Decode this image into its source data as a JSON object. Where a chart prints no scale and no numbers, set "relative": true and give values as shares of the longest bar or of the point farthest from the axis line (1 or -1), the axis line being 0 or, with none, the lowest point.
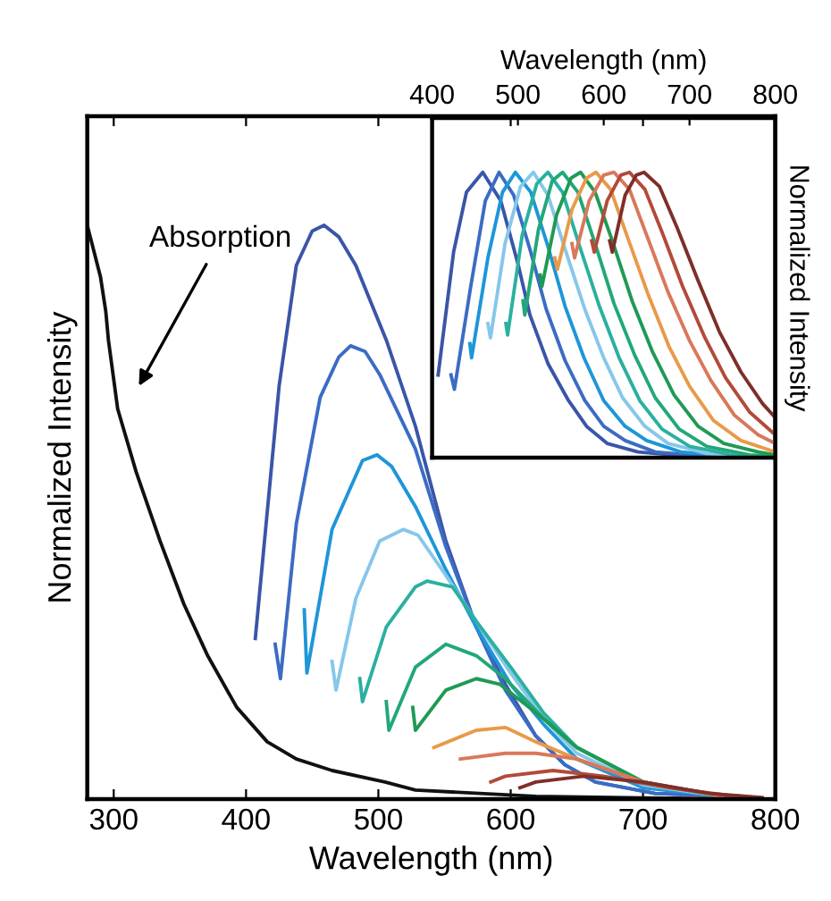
{
  "chart_data": [
    {
      "type": "line",
      "relative": true,
      "xlabel": "Wavelength (nm)",
      "ylabel": "Normalized Intensity",
      "xlim": [
        280,
        800
      ],
      "xticks": [
        300,
        400,
        500,
        600,
        700,
        800
      ],
      "marker": "none",
      "line_style": "solid",
      "annotations": [
        "Absorption"
      ],
      "series": [
        {
          "color": "#111111",
          "x": [
            280,
            290,
            294,
            296,
            303,
            317,
            335,
            353,
            371,
            393,
            416,
            438,
            465,
            505,
            528,
            619,
            700,
            800
          ],
          "values": [
            1.0,
            0.91,
            0.85,
            0.8,
            0.68,
            0.57,
            0.45,
            0.34,
            0.25,
            0.16,
            0.1,
            0.07,
            0.05,
            0.03,
            0.016,
            0.005,
            0.002,
            0.0
          ]
        },
        {
          "color": "#3a55a8",
          "x": [
            407,
            425,
            438,
            450,
            459,
            470,
            483,
            506,
            528,
            551,
            574,
            596,
            619,
            641,
            664,
            709,
            775
          ],
          "values": [
            0.28,
            0.72,
            0.93,
            0.99,
            1.0,
            0.98,
            0.93,
            0.8,
            0.65,
            0.45,
            0.3,
            0.2,
            0.11,
            0.06,
            0.03,
            0.01,
            0.005
          ]
        },
        {
          "color": "#3b6cc4",
          "x": [
            422,
            426,
            438,
            456,
            470,
            479,
            490,
            501,
            528,
            551,
            574,
            596,
            619,
            641,
            664,
            709,
            775
          ],
          "values": [
            0.27,
            0.21,
            0.48,
            0.7,
            0.77,
            0.79,
            0.78,
            0.74,
            0.61,
            0.44,
            0.3,
            0.19,
            0.11,
            0.06,
            0.03,
            0.01,
            0.005
          ]
        },
        {
          "color": "#1e96d8",
          "x": [
            444,
            446,
            465,
            488,
            499,
            510,
            528,
            551,
            574,
            600,
            625,
            650,
            700,
            760
          ],
          "values": [
            0.33,
            0.22,
            0.47,
            0.59,
            0.6,
            0.58,
            0.51,
            0.4,
            0.3,
            0.2,
            0.13,
            0.07,
            0.02,
            0.005
          ]
        },
        {
          "color": "#86c7ea",
          "x": [
            465,
            468,
            483,
            501,
            519,
            530,
            551,
            574,
            600,
            625,
            650,
            700,
            760
          ],
          "values": [
            0.24,
            0.19,
            0.35,
            0.45,
            0.47,
            0.46,
            0.39,
            0.31,
            0.22,
            0.14,
            0.08,
            0.025,
            0.005
          ]
        },
        {
          "color": "#2ab0a0",
          "x": [
            486,
            488,
            506,
            528,
            537,
            556,
            574,
            600,
            625,
            650,
            700,
            760
          ],
          "values": [
            0.21,
            0.17,
            0.3,
            0.37,
            0.38,
            0.37,
            0.31,
            0.23,
            0.15,
            0.09,
            0.03,
            0.005
          ]
        },
        {
          "color": "#22a878",
          "x": [
            506,
            508,
            528,
            551,
            574,
            596,
            625,
            650,
            700,
            760
          ],
          "values": [
            0.17,
            0.12,
            0.23,
            0.27,
            0.25,
            0.21,
            0.14,
            0.09,
            0.03,
            0.005
          ]
        },
        {
          "color": "#1f9a55",
          "x": [
            526,
            528,
            551,
            574,
            592,
            625,
            650,
            700,
            760
          ],
          "values": [
            0.16,
            0.12,
            0.19,
            0.21,
            0.2,
            0.14,
            0.09,
            0.03,
            0.005
          ]
        },
        {
          "color": "#e89a4a",
          "x": [
            542,
            574,
            596,
            619,
            650,
            700,
            760
          ],
          "values": [
            0.09,
            0.12,
            0.125,
            0.1,
            0.07,
            0.03,
            0.005
          ]
        },
        {
          "color": "#d9785a",
          "x": [
            562,
            596,
            619,
            650,
            700,
            760
          ],
          "values": [
            0.07,
            0.08,
            0.08,
            0.07,
            0.03,
            0.005
          ]
        },
        {
          "color": "#b34a3a",
          "x": [
            585,
            596,
            632,
            670,
            720,
            770
          ],
          "values": [
            0.03,
            0.04,
            0.05,
            0.04,
            0.02,
            0.005
          ]
        },
        {
          "color": "#7e2f2a",
          "x": [
            607,
            619,
            655,
            700,
            750,
            790
          ],
          "values": [
            0.02,
            0.03,
            0.04,
            0.03,
            0.01,
            0.003
          ]
        }
      ]
    },
    {
      "type": "line",
      "relative": true,
      "xlabel": "Wavelength (nm)",
      "ylabel": "Normalized Intensity",
      "xlim": [
        400,
        800
      ],
      "xticks": [
        400,
        500,
        600,
        700,
        800
      ],
      "marker": "none",
      "line_style": "solid",
      "series": [
        {
          "color": "#3a55a8",
          "x": [
            407,
            425,
            440,
            459,
            480,
            500,
            514,
            535,
            559,
            580,
            604,
            640,
            700,
            800
          ],
          "values": [
            0.29,
            0.72,
            0.93,
            1.0,
            0.9,
            0.68,
            0.5,
            0.33,
            0.2,
            0.11,
            0.05,
            0.02,
            0.005,
            0.0
          ]
        },
        {
          "color": "#3b6cc4",
          "x": [
            422,
            426,
            445,
            462,
            478,
            495,
            515,
            533,
            555,
            578,
            600,
            625,
            660,
            720,
            800
          ],
          "values": [
            0.29,
            0.24,
            0.6,
            0.9,
            1.0,
            0.92,
            0.72,
            0.52,
            0.34,
            0.2,
            0.11,
            0.06,
            0.02,
            0.005,
            0.0
          ]
        },
        {
          "color": "#1e96d8",
          "x": [
            444,
            446,
            465,
            482,
            497,
            515,
            535,
            555,
            577,
            600,
            625,
            650,
            690,
            750,
            800
          ],
          "values": [
            0.4,
            0.35,
            0.7,
            0.93,
            1.0,
            0.93,
            0.74,
            0.53,
            0.35,
            0.2,
            0.11,
            0.06,
            0.02,
            0.005,
            0.0
          ]
        },
        {
          "color": "#86c7ea",
          "x": [
            465,
            468,
            485,
            503,
            518,
            535,
            555,
            578,
            600,
            622,
            648,
            675,
            720,
            800
          ],
          "values": [
            0.47,
            0.42,
            0.75,
            0.95,
            1.0,
            0.92,
            0.73,
            0.52,
            0.35,
            0.21,
            0.11,
            0.05,
            0.015,
            0.0
          ]
        },
        {
          "color": "#2ab0a0",
          "x": [
            486,
            488,
            505,
            522,
            535,
            552,
            572,
            595,
            618,
            642,
            668,
            700,
            750,
            800
          ],
          "values": [
            0.47,
            0.43,
            0.78,
            0.96,
            1.0,
            0.93,
            0.74,
            0.53,
            0.35,
            0.2,
            0.1,
            0.04,
            0.01,
            0.0
          ]
        },
        {
          "color": "#22a878",
          "x": [
            506,
            508,
            524,
            540,
            552,
            570,
            590,
            612,
            636,
            660,
            688,
            720,
            770,
            800
          ],
          "values": [
            0.55,
            0.5,
            0.8,
            0.97,
            1.0,
            0.93,
            0.75,
            0.54,
            0.36,
            0.21,
            0.1,
            0.04,
            0.01,
            0.005
          ]
        },
        {
          "color": "#1f9a55",
          "x": [
            526,
            528,
            545,
            562,
            573,
            590,
            610,
            633,
            657,
            682,
            710,
            740,
            780,
            800
          ],
          "values": [
            0.64,
            0.6,
            0.85,
            0.98,
            1.0,
            0.93,
            0.76,
            0.55,
            0.37,
            0.22,
            0.11,
            0.05,
            0.02,
            0.01
          ]
        },
        {
          "color": "#e89a4a",
          "x": [
            543,
            546,
            563,
            580,
            591,
            608,
            628,
            652,
            676,
            700,
            728,
            760,
            800
          ],
          "values": [
            0.7,
            0.66,
            0.87,
            0.98,
            1.0,
            0.94,
            0.77,
            0.57,
            0.39,
            0.25,
            0.13,
            0.06,
            0.02
          ]
        },
        {
          "color": "#d9785a",
          "x": [
            563,
            566,
            583,
            600,
            612,
            630,
            650,
            675,
            700,
            725,
            752,
            780,
            800
          ],
          "values": [
            0.75,
            0.7,
            0.9,
            0.99,
            1.0,
            0.94,
            0.78,
            0.58,
            0.41,
            0.27,
            0.15,
            0.08,
            0.05
          ]
        },
        {
          "color": "#b34a3a",
          "x": [
            586,
            589,
            604,
            620,
            630,
            648,
            668,
            692,
            718,
            742,
            770,
            800
          ],
          "values": [
            0.76,
            0.72,
            0.9,
            0.99,
            1.0,
            0.94,
            0.79,
            0.6,
            0.42,
            0.28,
            0.16,
            0.08
          ]
        },
        {
          "color": "#7e2f2a",
          "x": [
            607,
            610,
            625,
            638,
            647,
            665,
            685,
            710,
            735,
            760,
            785,
            800
          ],
          "values": [
            0.76,
            0.72,
            0.92,
            0.99,
            1.0,
            0.95,
            0.81,
            0.62,
            0.44,
            0.3,
            0.19,
            0.14
          ]
        }
      ]
    }
  ]
}
